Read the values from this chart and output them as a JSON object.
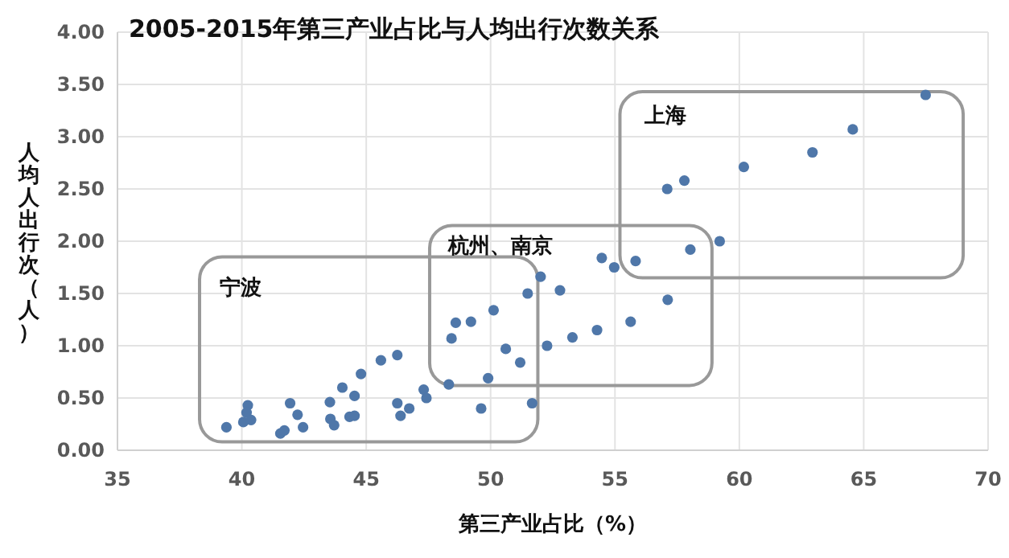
{
  "chart_data": {
    "type": "scatter",
    "title": "2005-2015年第三产业占比与人均出行次数关系",
    "xlabel": "第三产业占比（%）",
    "ylabel": "人均人出行次（人）",
    "x": [
      39.38,
      40.24,
      40.19,
      40.06,
      40.37,
      41.55,
      41.71,
      41.94,
      42.24,
      42.46,
      43.54,
      43.56,
      43.71,
      44.04,
      44.53,
      44.33,
      44.53,
      44.79,
      45.59,
      46.25,
      46.25,
      46.38,
      46.73,
      47.31,
      47.42,
      48.32,
      49.62,
      49.9,
      48.43,
      48.6,
      49.21,
      50.12,
      50.61,
      51.19,
      51.67,
      51.49,
      52.01,
      52.79,
      52.27,
      53.29,
      54.28,
      54.47,
      54.97,
      55.83,
      55.63,
      57.12,
      58.03,
      59.21,
      57.1,
      57.79,
      60.18,
      62.94,
      64.56,
      67.49
    ],
    "values": [
      0.22,
      0.43,
      0.36,
      0.27,
      0.29,
      0.16,
      0.19,
      0.45,
      0.34,
      0.22,
      0.46,
      0.3,
      0.24,
      0.6,
      0.52,
      0.32,
      0.33,
      0.73,
      0.86,
      0.91,
      0.45,
      0.33,
      0.4,
      0.58,
      0.5,
      0.63,
      0.4,
      0.69,
      1.07,
      1.22,
      1.23,
      1.34,
      0.97,
      0.84,
      0.45,
      1.5,
      1.66,
      1.53,
      1.0,
      1.08,
      1.15,
      1.84,
      1.75,
      1.81,
      1.23,
      1.44,
      1.92,
      2.0,
      2.5,
      2.58,
      2.71,
      2.85,
      3.07,
      3.4
    ],
    "color": "#4f77a9",
    "marker": "circle",
    "xlim": [
      35,
      70
    ],
    "xticks": [
      35,
      40,
      45,
      50,
      55,
      60,
      65,
      70
    ],
    "ylim": [
      0,
      4
    ],
    "yticks": [
      {
        "value": 0,
        "label": "0.00"
      },
      {
        "value": 0.5,
        "label": "0.50"
      },
      {
        "value": 1,
        "label": "1.00"
      },
      {
        "value": 1.5,
        "label": "1.50"
      },
      {
        "value": 2,
        "label": "2.00"
      },
      {
        "value": 2.5,
        "label": "2.50"
      },
      {
        "value": 3,
        "label": "3.00"
      },
      {
        "value": 3.5,
        "label": "3.50"
      },
      {
        "value": 4,
        "label": "4.00"
      }
    ],
    "grid": true,
    "annotations": [
      "宁波",
      "杭州、南京",
      "上海"
    ]
  }
}
